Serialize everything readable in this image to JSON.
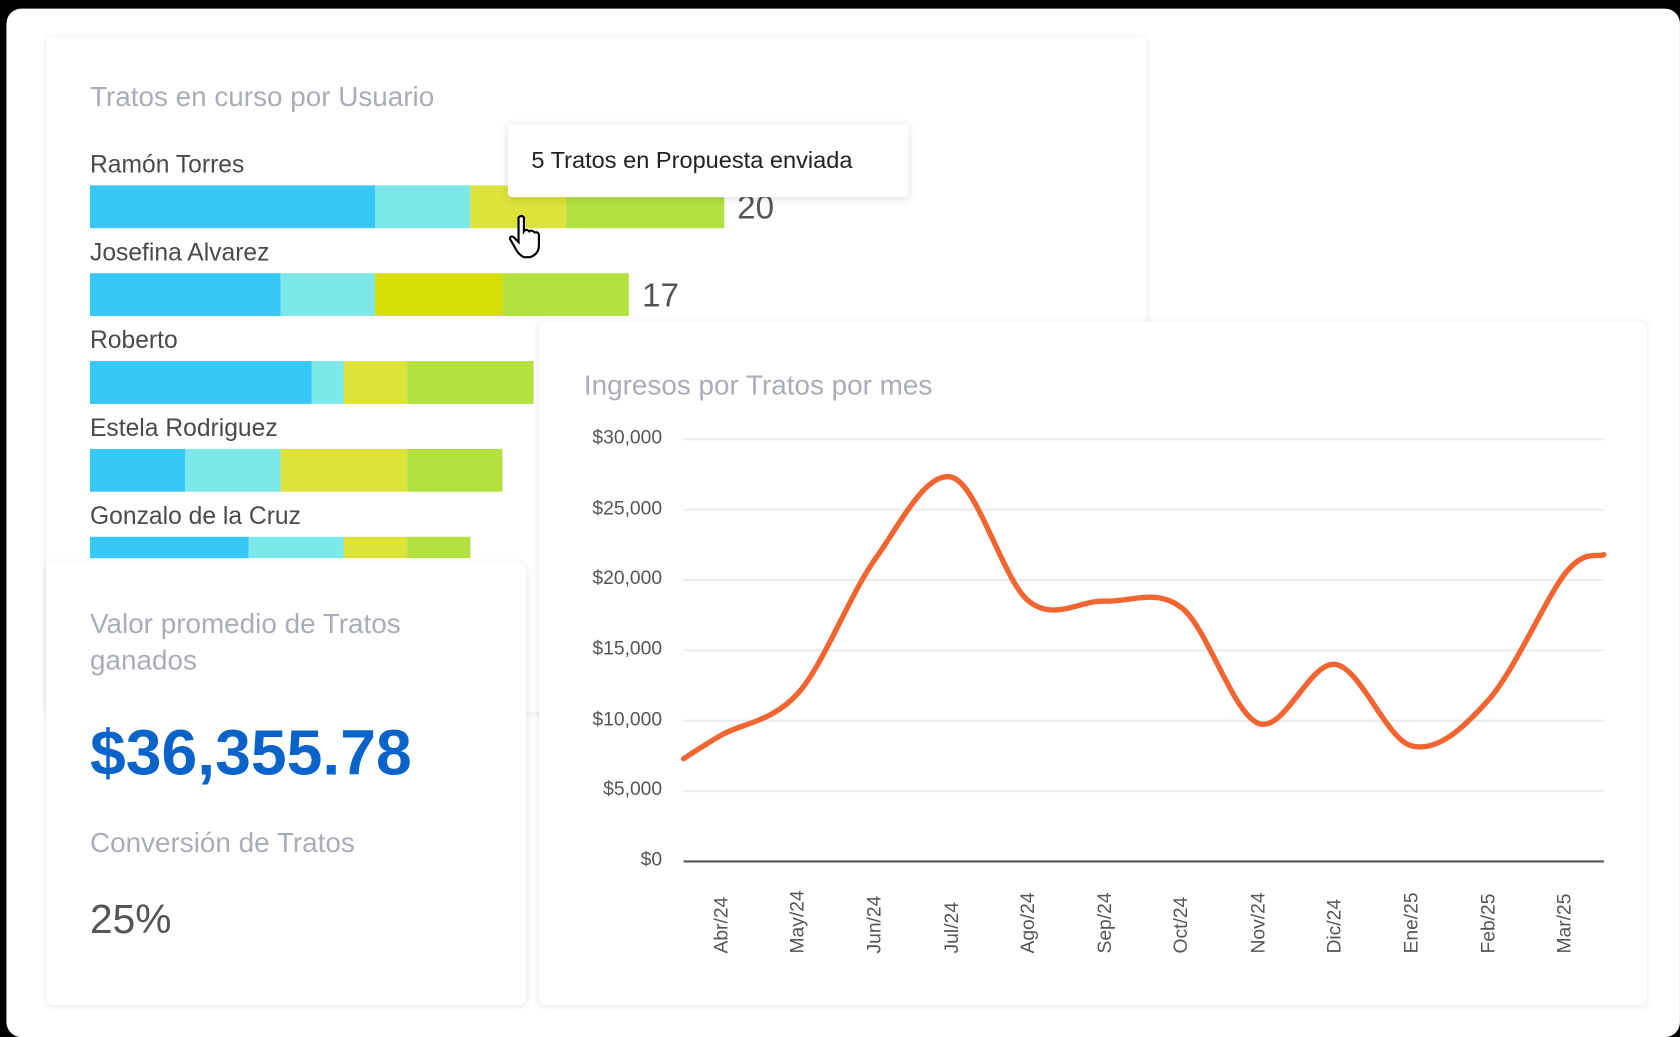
{
  "users_card": {
    "title": "Tratos en curso por Usuario",
    "stage_colors": [
      "#38c8f8",
      "#7de8ea",
      "#dde33a",
      "#b3e23f"
    ],
    "users": [
      {
        "name": "Ramón Torres",
        "segments": [
          9,
          3,
          3,
          5
        ],
        "total": "20",
        "highlight_color": "#dde33a"
      },
      {
        "name": "Josefina Alvarez",
        "segments": [
          6,
          3,
          4,
          4
        ],
        "total": "17",
        "highlight_color": "#d6de06"
      },
      {
        "name": "Roberto",
        "segments": [
          7,
          1,
          2,
          4
        ]
      },
      {
        "name": "Estela Rodriguez",
        "segments": [
          3,
          3,
          4,
          3
        ]
      },
      {
        "name": "Gonzalo de la Cruz",
        "segments": [
          5,
          3,
          2,
          2
        ]
      }
    ],
    "tooltip": "5 Tratos en Propuesta enviada"
  },
  "avg_card": {
    "title": "Valor promedio de Tratos ganados",
    "value": "$36,355.78",
    "value_color": "#0a63c9",
    "conversion_title": "Conversión de Tratos",
    "conversion_value": "25%"
  },
  "chart_data": {
    "type": "line",
    "title": "Ingresos por Tratos por mes",
    "categories": [
      "Abr/24",
      "May/24",
      "Jun/24",
      "Jul/24",
      "Ago/24",
      "Sep/24",
      "Oct/24",
      "Nov/24",
      "Dic/24",
      "Ene/25",
      "Feb/25",
      "Mar/25"
    ],
    "values": [
      9000,
      12000,
      21500,
      27300,
      18500,
      18500,
      18000,
      9800,
      14000,
      8200,
      11500,
      20500
    ],
    "ylim": [
      0,
      30000
    ],
    "yticks": [
      "$0",
      "$5,000",
      "$10,000",
      "$15,000",
      "$20,000",
      "$25,000",
      "$30,000"
    ],
    "grid": true,
    "line_color": "#f26430"
  }
}
